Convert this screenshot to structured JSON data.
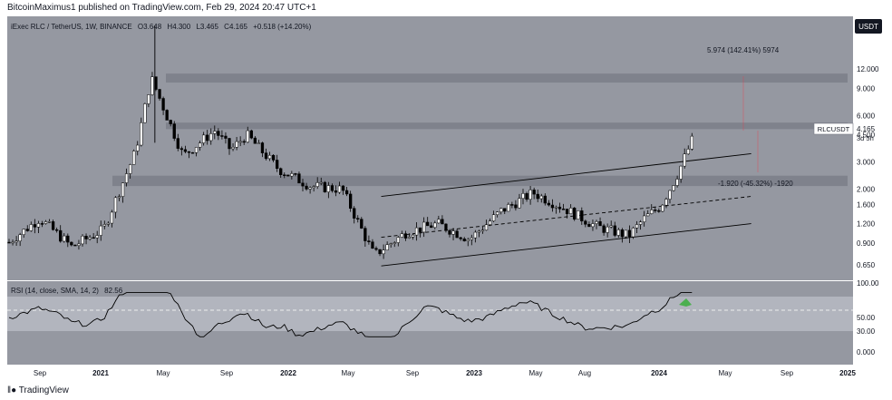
{
  "header": {
    "published": "BitcoinMaximus1 published on TradingView.com, Feb 29, 2024 20:47 UTC+1"
  },
  "legend": {
    "symbol": "iExec RLC / TetherUS, 1W, BINANCE",
    "o_label": "O",
    "o": "3.648",
    "h_label": "H",
    "h": "4.300",
    "l_label": "L",
    "l": "3.465",
    "c_label": "C",
    "c": "4.165",
    "change": "+0.518 (+14.20%)"
  },
  "currency": "USDT",
  "price_tag": {
    "symbol": "RLCUSDT",
    "price": "4.165",
    "countdown": "3d 5h"
  },
  "measures": [
    {
      "text": "5.974 (142.41%) 5974"
    },
    {
      "text": "-1.920 (-45.32%) -1920"
    }
  ],
  "rsi_legend": {
    "label": "RSI (14, close, SMA, 14, 2)",
    "value": "82.56"
  },
  "footer": {
    "brand": "TradingView"
  },
  "colors": {
    "pane_bg": "#9598a1",
    "zone": "#787b86",
    "rsi_band": "#b2b5be",
    "bull": "#ffffff",
    "bear": "#000000",
    "highlight": "#4caf50"
  },
  "chart_data": {
    "type": "candlestick",
    "price_scale": "log",
    "price_axis_ticks": [
      "12.000",
      "9.000",
      "6.000",
      "4.500",
      "3.000",
      "2.000",
      "1.600",
      "1.200",
      "0.900",
      "0.650"
    ],
    "rsi_axis_ticks": [
      "100.00",
      "50.00",
      "30.00",
      "0.000"
    ],
    "time_axis_ticks": [
      "Sep",
      "2021",
      "May",
      "Sep",
      "2022",
      "May",
      "Sep",
      "2023",
      "May",
      "Aug",
      "2024",
      "May",
      "Sep",
      "2025"
    ],
    "horizontal_zones": [
      {
        "from": 9.8,
        "to": 11.2
      },
      {
        "from": 4.9,
        "to": 5.4
      },
      {
        "from": 2.1,
        "to": 2.45
      }
    ],
    "channel_lines": [
      {
        "from": {
          "time": "Jun 2022",
          "price": 1.8
        },
        "to": {
          "time": "Apr 2024",
          "price": 3.4
        }
      },
      {
        "from": {
          "time": "Jun 2022",
          "price": 0.98
        },
        "to": {
          "time": "Apr 2024",
          "price": 1.8
        },
        "dashed": true
      },
      {
        "from": {
          "time": "Jun 2022",
          "price": 0.64
        },
        "to": {
          "time": "Apr 2024",
          "price": 1.2
        }
      }
    ],
    "close_series_approx": [
      {
        "time": "Jul 2020",
        "close": 0.9
      },
      {
        "time": "Sep 2020",
        "close": 1.3
      },
      {
        "time": "Nov 2020",
        "close": 0.85
      },
      {
        "time": "Jan 2021",
        "close": 1.1
      },
      {
        "time": "Mar 2021",
        "close": 3.5
      },
      {
        "time": "Apr 2021",
        "close": 10.5
      },
      {
        "time": "Jun 2021",
        "close": 3.3
      },
      {
        "time": "Aug 2021",
        "close": 4.8
      },
      {
        "time": "Sep 2021",
        "close": 3.6
      },
      {
        "time": "Oct 2021",
        "close": 4.5
      },
      {
        "time": "Dec 2021",
        "close": 2.7
      },
      {
        "time": "Feb 2022",
        "close": 2.1
      },
      {
        "time": "Apr 2022",
        "close": 2.0
      },
      {
        "time": "Jun 2022",
        "close": 0.75
      },
      {
        "time": "Aug 2022",
        "close": 1.05
      },
      {
        "time": "Oct 2022",
        "close": 1.2
      },
      {
        "time": "Dec 2022",
        "close": 0.95
      },
      {
        "time": "Feb 2023",
        "close": 1.45
      },
      {
        "time": "Apr 2023",
        "close": 1.9
      },
      {
        "time": "Jun 2023",
        "close": 1.5
      },
      {
        "time": "Aug 2023",
        "close": 1.15
      },
      {
        "time": "Oct 2023",
        "close": 1.0
      },
      {
        "time": "Nov 2023",
        "close": 1.3
      },
      {
        "time": "Dec 2023",
        "close": 1.55
      },
      {
        "time": "Jan 2024",
        "close": 2.4
      },
      {
        "time": "Feb 2024",
        "close": 4.165
      }
    ]
  }
}
